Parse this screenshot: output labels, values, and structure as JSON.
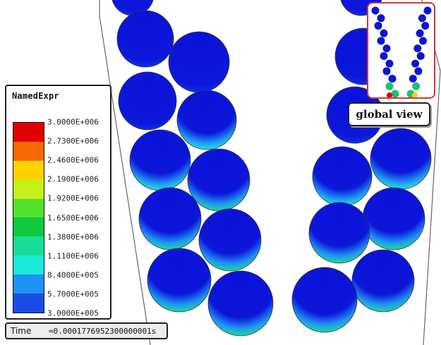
{
  "colors": {
    "background": "#ffffff",
    "particle_base": "#0a1ad6",
    "wall_line": "#555555",
    "inset_border": "#d93636"
  },
  "legend": {
    "title": "NamedExpr",
    "labels": [
      "3.0000E+006",
      "2.7300E+006",
      "2.4600E+006",
      "2.1900E+006",
      "1.9200E+006",
      "1.6500E+006",
      "1.3800E+006",
      "1.1100E+006",
      "8.4000E+005",
      "5.7000E+005",
      "3.0000E+005"
    ],
    "colors": [
      "#e00000",
      "#f66a00",
      "#ffd200",
      "#c6f019",
      "#52e22d",
      "#10c93e",
      "#19dc98",
      "#1ce9dc",
      "#1f93f5",
      "#1a4ce6"
    ]
  },
  "status": {
    "time_label": "Time",
    "time_value": "=0.0001776952300000001s"
  },
  "inset": {
    "label": "global view"
  }
}
